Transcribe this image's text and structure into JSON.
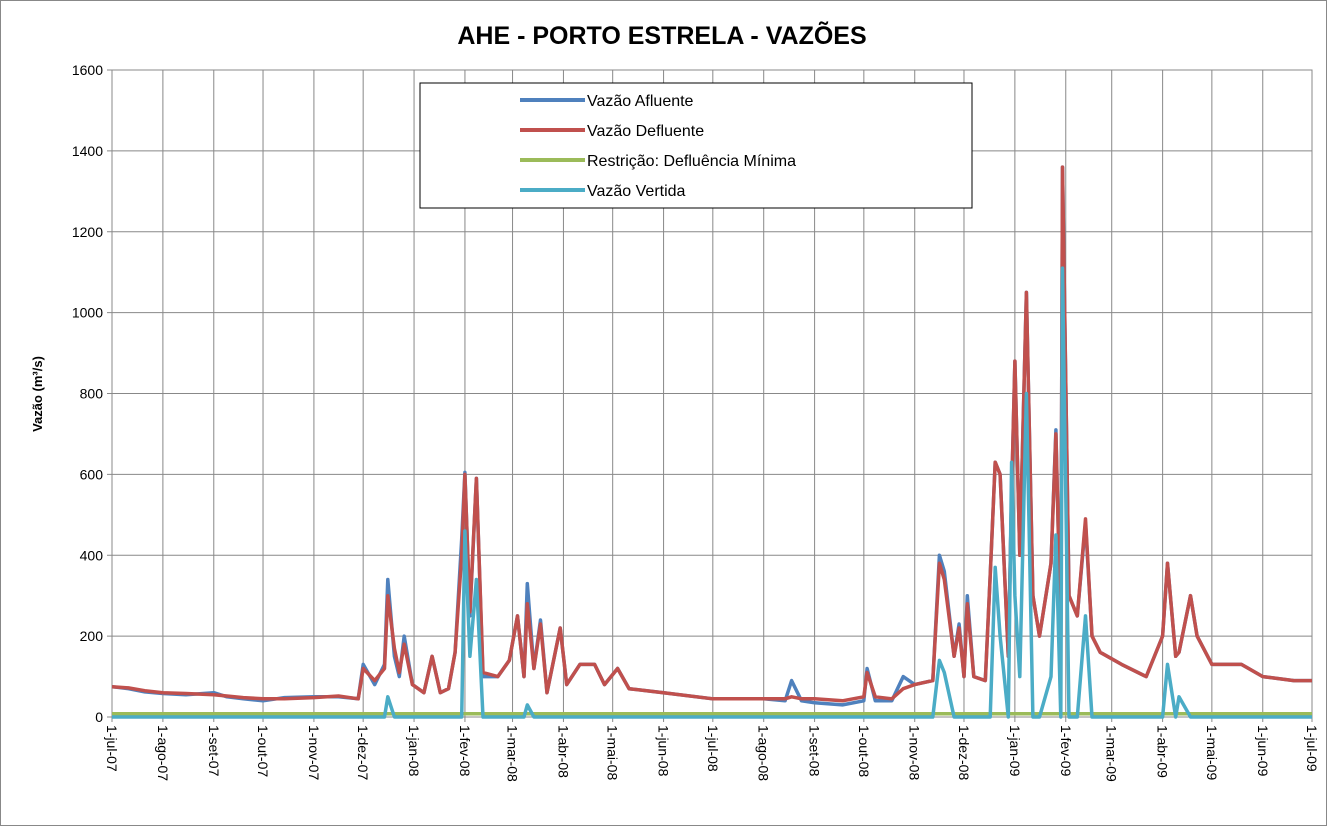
{
  "chart_data": {
    "type": "line",
    "title": "AHE - PORTO ESTRELA - VAZÕES",
    "y_label": "Vazão (m³/s)",
    "ylim": [
      0,
      1600
    ],
    "yticks": [
      0,
      200,
      400,
      600,
      800,
      1000,
      1200,
      1400,
      1600
    ],
    "xlim": [
      "2007-07-01",
      "2009-07-01"
    ],
    "xticks": [
      {
        "value": "2007-07-01",
        "label": "1-jul-07"
      },
      {
        "value": "2007-08-01",
        "label": "1-ago-07"
      },
      {
        "value": "2007-09-01",
        "label": "1-set-07"
      },
      {
        "value": "2007-10-01",
        "label": "1-out-07"
      },
      {
        "value": "2007-11-01",
        "label": "1-nov-07"
      },
      {
        "value": "2007-12-01",
        "label": "1-dez-07"
      },
      {
        "value": "2008-01-01",
        "label": "1-jan-08"
      },
      {
        "value": "2008-02-01",
        "label": "1-fev-08"
      },
      {
        "value": "2008-03-01",
        "label": "1-mar-08"
      },
      {
        "value": "2008-04-01",
        "label": "1-abr-08"
      },
      {
        "value": "2008-05-01",
        "label": "1-mai-08"
      },
      {
        "value": "2008-06-01",
        "label": "1-jun-08"
      },
      {
        "value": "2008-07-01",
        "label": "1-jul-08"
      },
      {
        "value": "2008-08-01",
        "label": "1-ago-08"
      },
      {
        "value": "2008-09-01",
        "label": "1-set-08"
      },
      {
        "value": "2008-10-01",
        "label": "1-out-08"
      },
      {
        "value": "2008-11-01",
        "label": "1-nov-08"
      },
      {
        "value": "2008-12-01",
        "label": "1-dez-08"
      },
      {
        "value": "2009-01-01",
        "label": "1-jan-09"
      },
      {
        "value": "2009-02-01",
        "label": "1-fev-09"
      },
      {
        "value": "2009-03-01",
        "label": "1-mar-09"
      },
      {
        "value": "2009-04-01",
        "label": "1-abr-09"
      },
      {
        "value": "2009-05-01",
        "label": "1-mai-09"
      },
      {
        "value": "2009-06-01",
        "label": "1-jun-09"
      },
      {
        "value": "2009-07-01",
        "label": "1-jul-09"
      }
    ],
    "grid": true,
    "legend": "top",
    "x": [
      "2007-07-01",
      "2007-07-11",
      "2007-07-21",
      "2007-08-01",
      "2007-08-15",
      "2007-09-01",
      "2007-09-09",
      "2007-09-19",
      "2007-10-01",
      "2007-10-14",
      "2007-11-01",
      "2007-11-16",
      "2007-11-28",
      "2007-12-01",
      "2007-12-08",
      "2007-12-14",
      "2007-12-16",
      "2007-12-20",
      "2007-12-23",
      "2007-12-26",
      "2007-12-31",
      "2008-01-07",
      "2008-01-12",
      "2008-01-17",
      "2008-01-22",
      "2008-01-26",
      "2008-01-30",
      "2008-02-01",
      "2008-02-04",
      "2008-02-08",
      "2008-02-12",
      "2008-02-21",
      "2008-02-28",
      "2008-03-04",
      "2008-03-08",
      "2008-03-10",
      "2008-03-14",
      "2008-03-18",
      "2008-03-22",
      "2008-03-30",
      "2008-04-03",
      "2008-04-11",
      "2008-04-20",
      "2008-04-26",
      "2008-05-04",
      "2008-05-11",
      "2008-06-01",
      "2008-07-01",
      "2008-08-01",
      "2008-08-14",
      "2008-08-18",
      "2008-08-24",
      "2008-09-01",
      "2008-09-18",
      "2008-10-01",
      "2008-10-03",
      "2008-10-08",
      "2008-10-18",
      "2008-10-25",
      "2008-11-01",
      "2008-11-12",
      "2008-11-16",
      "2008-11-19",
      "2008-11-25",
      "2008-11-28",
      "2008-12-01",
      "2008-12-03",
      "2008-12-07",
      "2008-12-14",
      "2008-12-17",
      "2008-12-20",
      "2008-12-23",
      "2008-12-28",
      "2008-12-30",
      "2009-01-01",
      "2009-01-04",
      "2009-01-08",
      "2009-01-12",
      "2009-01-16",
      "2009-01-23",
      "2009-01-26",
      "2009-01-29",
      "2009-01-30",
      "2009-02-03",
      "2009-02-08",
      "2009-02-13",
      "2009-02-17",
      "2009-02-22",
      "2009-03-07",
      "2009-03-22",
      "2009-04-01",
      "2009-04-04",
      "2009-04-09",
      "2009-04-11",
      "2009-04-18",
      "2009-04-22",
      "2009-05-01",
      "2009-05-19",
      "2009-06-01",
      "2009-06-20",
      "2009-07-01"
    ],
    "series": [
      {
        "name": "Vazão Afluente",
        "color": "#4f81bd",
        "values": [
          75,
          70,
          62,
          58,
          55,
          60,
          50,
          45,
          40,
          48,
          50,
          50,
          45,
          130,
          80,
          130,
          340,
          150,
          100,
          200,
          80,
          60,
          150,
          60,
          70,
          160,
          440,
          605,
          250,
          590,
          100,
          100,
          140,
          250,
          100,
          330,
          120,
          240,
          60,
          220,
          80,
          130,
          130,
          80,
          120,
          70,
          60,
          45,
          45,
          40,
          90,
          40,
          35,
          30,
          40,
          120,
          40,
          40,
          100,
          80,
          90,
          400,
          360,
          150,
          230,
          100,
          300,
          100,
          90,
          350,
          630,
          600,
          150,
          550,
          880,
          400,
          1050,
          300,
          200,
          380,
          710,
          200,
          1360,
          300,
          250,
          480,
          200,
          160,
          130,
          100,
          200,
          380,
          150,
          160,
          300,
          200,
          130,
          130,
          100,
          90,
          90
        ]
      },
      {
        "name": "Vazão Defluente",
        "color": "#c0504d",
        "values": [
          75,
          72,
          65,
          60,
          58,
          55,
          52,
          48,
          45,
          45,
          48,
          52,
          45,
          120,
          90,
          120,
          300,
          170,
          110,
          180,
          80,
          60,
          150,
          60,
          70,
          160,
          400,
          600,
          260,
          590,
          110,
          100,
          140,
          250,
          100,
          280,
          120,
          230,
          60,
          220,
          80,
          130,
          130,
          80,
          120,
          70,
          60,
          45,
          45,
          45,
          50,
          45,
          45,
          40,
          50,
          110,
          50,
          45,
          70,
          80,
          90,
          380,
          340,
          150,
          220,
          100,
          280,
          100,
          90,
          350,
          630,
          600,
          150,
          550,
          880,
          400,
          1050,
          300,
          200,
          380,
          700,
          200,
          1360,
          300,
          250,
          490,
          200,
          160,
          130,
          100,
          200,
          380,
          150,
          160,
          300,
          200,
          130,
          130,
          100,
          90,
          90
        ]
      },
      {
        "name": "Restrição: Defluência Mínima",
        "color": "#9bbb59",
        "x": [
          "2007-07-01",
          "2009-07-01"
        ],
        "values": [
          8,
          8
        ]
      },
      {
        "name": "Vazão Vertida",
        "color": "#4bacc6",
        "values": [
          0,
          0,
          0,
          0,
          0,
          0,
          0,
          0,
          0,
          0,
          0,
          0,
          0,
          0,
          0,
          0,
          50,
          0,
          0,
          0,
          0,
          0,
          0,
          0,
          0,
          0,
          0,
          460,
          150,
          340,
          0,
          0,
          0,
          0,
          0,
          30,
          0,
          0,
          0,
          0,
          0,
          0,
          0,
          0,
          0,
          0,
          0,
          0,
          0,
          0,
          0,
          0,
          0,
          0,
          0,
          0,
          0,
          0,
          0,
          0,
          0,
          140,
          110,
          0,
          0,
          0,
          0,
          0,
          0,
          0,
          370,
          200,
          0,
          630,
          300,
          100,
          800,
          0,
          0,
          100,
          450,
          0,
          1110,
          0,
          0,
          250,
          0,
          0,
          0,
          0,
          0,
          130,
          0,
          50,
          0,
          0,
          0,
          0,
          0,
          0,
          0
        ]
      }
    ]
  }
}
